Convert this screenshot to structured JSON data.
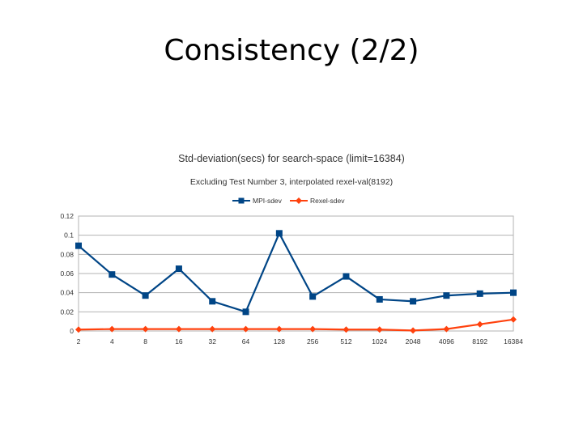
{
  "slide": {
    "title": "Consistency (2/2)"
  },
  "chart_data": {
    "type": "line",
    "title": "Std-deviation(secs) for search-space (limit=16384)",
    "subtitle": "Excluding Test Number 3, interpolated rexel-val(8192)",
    "xlabel": "",
    "ylabel": "",
    "categories": [
      "2",
      "4",
      "8",
      "16",
      "32",
      "64",
      "128",
      "256",
      "512",
      "1024",
      "2048",
      "4096",
      "8192",
      "16384"
    ],
    "ylim": [
      0,
      0.12
    ],
    "yticks": [
      {
        "value": 0,
        "label": "0"
      },
      {
        "value": 0.02,
        "label": "0.02"
      },
      {
        "value": 0.04,
        "label": "0.04"
      },
      {
        "value": 0.06,
        "label": "0.06"
      },
      {
        "value": 0.08,
        "label": "0.08"
      },
      {
        "value": 0.1,
        "label": "0.1"
      },
      {
        "value": 0.12,
        "label": "0.12"
      }
    ],
    "grid": true,
    "legend_position": "top",
    "series": [
      {
        "name": "MPI-sdev",
        "color": "#004586",
        "marker": "square",
        "values": [
          0.089,
          0.059,
          0.037,
          0.065,
          0.031,
          0.02,
          0.102,
          0.036,
          0.057,
          0.033,
          0.031,
          0.037,
          0.039,
          0.04
        ]
      },
      {
        "name": "Rexel-sdev",
        "color": "#ff420e",
        "marker": "diamond",
        "values": [
          0.0015,
          0.002,
          0.002,
          0.002,
          0.002,
          0.002,
          0.002,
          0.002,
          0.0015,
          0.0015,
          0.0005,
          0.002,
          0.007,
          0.012
        ]
      }
    ]
  }
}
